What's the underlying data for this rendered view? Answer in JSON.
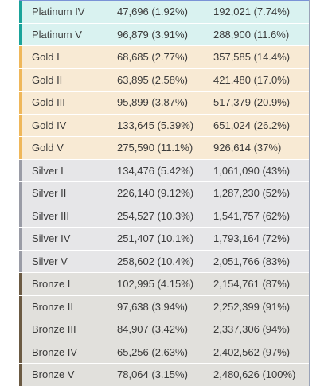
{
  "tiers": {
    "platinum": {
      "bg": "#d9f2f0",
      "accent": "#1aa39a"
    },
    "gold": {
      "bg": "#f8ead4",
      "accent": "#efb75a"
    },
    "silver": {
      "bg": "#e6e6e8",
      "accent": "#9a9ca6"
    },
    "bronze": {
      "bg": "#e1e0dc",
      "accent": "#6b5a43"
    }
  },
  "rows": [
    {
      "group": "platinum",
      "tier": "Platinum IV",
      "count": "47,696 (1.92%)",
      "cumulative": "192,021 (7.74%)"
    },
    {
      "group": "platinum",
      "tier": "Platinum V",
      "count": "96,879 (3.91%)",
      "cumulative": "288,900 (11.6%)"
    },
    {
      "group": "gold",
      "tier": "Gold I",
      "count": "68,685 (2.77%)",
      "cumulative": "357,585 (14.4%)"
    },
    {
      "group": "gold",
      "tier": "Gold II",
      "count": "63,895 (2.58%)",
      "cumulative": "421,480 (17.0%)"
    },
    {
      "group": "gold",
      "tier": "Gold III",
      "count": "95,899 (3.87%)",
      "cumulative": "517,379 (20.9%)"
    },
    {
      "group": "gold",
      "tier": "Gold IV",
      "count": "133,645 (5.39%)",
      "cumulative": "651,024 (26.2%)"
    },
    {
      "group": "gold",
      "tier": "Gold V",
      "count": "275,590 (11.1%)",
      "cumulative": "926,614 (37%)"
    },
    {
      "group": "silver",
      "tier": "Silver I",
      "count": "134,476 (5.42%)",
      "cumulative": "1,061,090 (43%)"
    },
    {
      "group": "silver",
      "tier": "Silver II",
      "count": "226,140 (9.12%)",
      "cumulative": "1,287,230 (52%)"
    },
    {
      "group": "silver",
      "tier": "Silver III",
      "count": "254,527 (10.3%)",
      "cumulative": "1,541,757 (62%)"
    },
    {
      "group": "silver",
      "tier": "Silver IV",
      "count": "251,407 (10.1%)",
      "cumulative": "1,793,164 (72%)"
    },
    {
      "group": "silver",
      "tier": "Silver V",
      "count": "258,602 (10.4%)",
      "cumulative": "2,051,766 (83%)"
    },
    {
      "group": "bronze",
      "tier": "Bronze I",
      "count": "102,995 (4.15%)",
      "cumulative": "2,154,761 (87%)"
    },
    {
      "group": "bronze",
      "tier": "Bronze II",
      "count": "97,638 (3.94%)",
      "cumulative": "2,252,399 (91%)"
    },
    {
      "group": "bronze",
      "tier": "Bronze III",
      "count": "84,907 (3.42%)",
      "cumulative": "2,337,306 (94%)"
    },
    {
      "group": "bronze",
      "tier": "Bronze IV",
      "count": "65,256 (2.63%)",
      "cumulative": "2,402,562 (97%)"
    },
    {
      "group": "bronze",
      "tier": "Bronze V",
      "count": "78,064 (3.15%)",
      "cumulative": "2,480,626 (100%)"
    }
  ]
}
